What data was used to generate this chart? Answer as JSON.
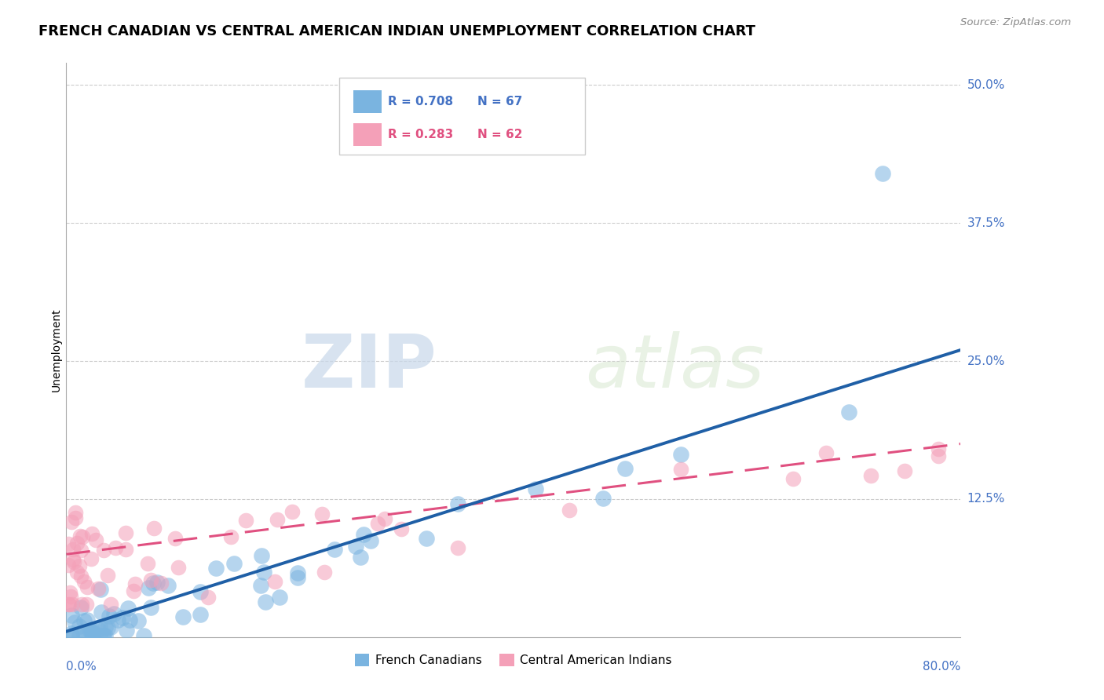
{
  "title": "FRENCH CANADIAN VS CENTRAL AMERICAN INDIAN UNEMPLOYMENT CORRELATION CHART",
  "source": "Source: ZipAtlas.com",
  "ylabel": "Unemployment",
  "y_tick_labels": [
    "50.0%",
    "37.5%",
    "25.0%",
    "12.5%"
  ],
  "y_tick_values": [
    0.5,
    0.375,
    0.25,
    0.125
  ],
  "x_range": [
    0.0,
    0.8
  ],
  "y_range": [
    0.0,
    0.52
  ],
  "series1_label": "French Canadians",
  "series1_R": 0.708,
  "series1_N": 67,
  "series1_color": "#7ab4e0",
  "series1_line_color": "#1f5fa6",
  "series2_label": "Central American Indians",
  "series2_R": 0.283,
  "series2_N": 62,
  "series2_color": "#f4a0b8",
  "series2_line_color": "#e05080",
  "background_color": "#ffffff",
  "watermark_ZIP": "ZIP",
  "watermark_atlas": "atlas",
  "title_fontsize": 13,
  "axis_label_color": "#4472c4",
  "legend_color_blue": "#4472c4",
  "legend_color_pink": "#e05080",
  "seed": 7
}
